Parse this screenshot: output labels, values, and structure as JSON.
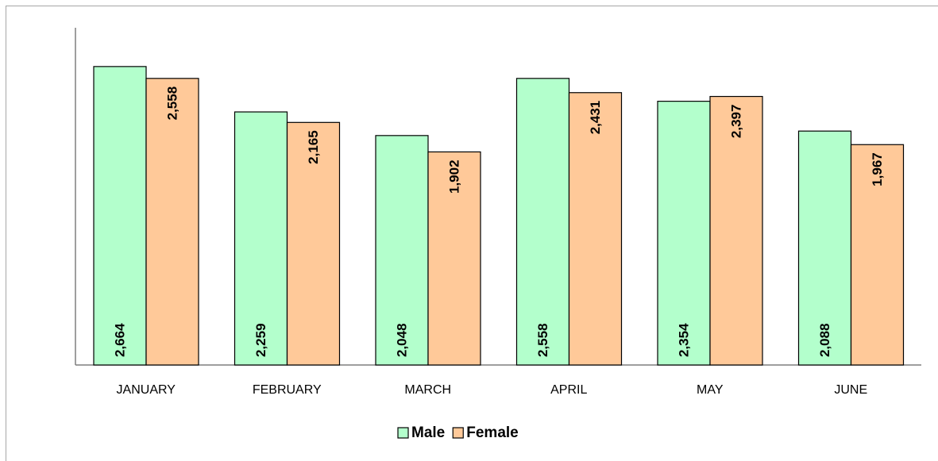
{
  "chart_data": {
    "type": "bar",
    "categories": [
      "JANUARY",
      "FEBRUARY",
      "MARCH",
      "APRIL",
      "MAY",
      "JUNE"
    ],
    "series": [
      {
        "name": "Male",
        "color": "#b3ffcc",
        "values": [
          2664,
          2259,
          2048,
          2558,
          2354,
          2088
        ],
        "value_labels": [
          "2,664",
          "2,259",
          "2,048",
          "2,558",
          "2,354",
          "2,088"
        ]
      },
      {
        "name": "Female",
        "color": "#ffc999",
        "values": [
          2558,
          2165,
          1902,
          2431,
          2397,
          1967
        ],
        "value_labels": [
          "2,558",
          "2,165",
          "1,902",
          "2,431",
          "2,397",
          "1,967"
        ]
      }
    ],
    "ylim": [
      0,
      3010
    ],
    "legend": "bottom"
  }
}
